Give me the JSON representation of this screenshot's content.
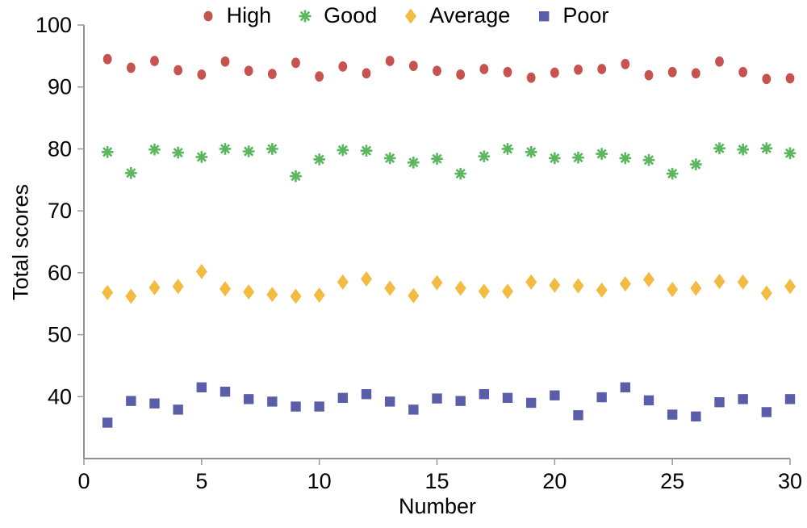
{
  "figure": {
    "background": "#ffffff"
  },
  "colors": {
    "axis_line": "#6e6e6e",
    "tick_mark": "#999999",
    "text": "#000000"
  },
  "chart_data": {
    "type": "scatter",
    "title": "",
    "xlabel": "Number",
    "ylabel": "Total scores",
    "xlim": [
      0,
      30
    ],
    "ylim": [
      30,
      100
    ],
    "xticks": [
      0,
      5,
      10,
      15,
      20,
      25,
      30
    ],
    "yticks": [
      40,
      50,
      60,
      70,
      80,
      90,
      100
    ],
    "grid": false,
    "legend_position": "top-center",
    "x": [
      1,
      2,
      3,
      4,
      5,
      6,
      7,
      8,
      9,
      10,
      11,
      12,
      13,
      14,
      15,
      16,
      17,
      18,
      19,
      20,
      21,
      22,
      23,
      24,
      25,
      26,
      27,
      28,
      29,
      30
    ],
    "series": [
      {
        "name": "High",
        "marker": "circle",
        "color": "#C65350",
        "values": [
          94.5,
          93.1,
          94.2,
          92.7,
          92.0,
          94.1,
          92.6,
          92.1,
          93.9,
          91.7,
          93.3,
          92.2,
          94.2,
          93.4,
          92.6,
          92.0,
          92.9,
          92.4,
          91.5,
          92.3,
          92.8,
          92.9,
          93.7,
          91.9,
          92.4,
          92.2,
          94.1,
          92.4,
          91.3,
          91.4
        ]
      },
      {
        "name": "Good",
        "marker": "asterisk",
        "color": "#5BB75E",
        "values": [
          79.5,
          76.1,
          79.9,
          79.4,
          78.7,
          80.0,
          79.6,
          80.0,
          75.6,
          78.3,
          79.8,
          79.7,
          78.5,
          77.8,
          78.4,
          76.0,
          78.8,
          80.0,
          79.5,
          78.5,
          78.6,
          79.2,
          78.5,
          78.2,
          76.0,
          77.5,
          80.1,
          79.9,
          80.1,
          79.3
        ]
      },
      {
        "name": "Average",
        "marker": "diamond",
        "color": "#F1BC41",
        "values": [
          56.8,
          56.2,
          57.6,
          57.8,
          60.2,
          57.4,
          56.9,
          56.5,
          56.2,
          56.4,
          58.5,
          59.0,
          57.5,
          56.3,
          58.4,
          57.5,
          57.0,
          57.0,
          58.5,
          58.0,
          57.9,
          57.2,
          58.2,
          58.9,
          57.3,
          57.5,
          58.6,
          58.5,
          56.7,
          57.8
        ]
      },
      {
        "name": "Poor",
        "marker": "square",
        "color": "#5A5EA9",
        "values": [
          35.8,
          39.3,
          38.9,
          37.9,
          41.5,
          40.8,
          39.6,
          39.2,
          38.4,
          38.4,
          39.8,
          40.4,
          39.2,
          37.9,
          39.7,
          39.3,
          40.4,
          39.8,
          39.0,
          40.2,
          37.0,
          39.9,
          41.5,
          39.4,
          37.1,
          36.8,
          39.1,
          39.6,
          37.5,
          39.6
        ]
      }
    ]
  }
}
